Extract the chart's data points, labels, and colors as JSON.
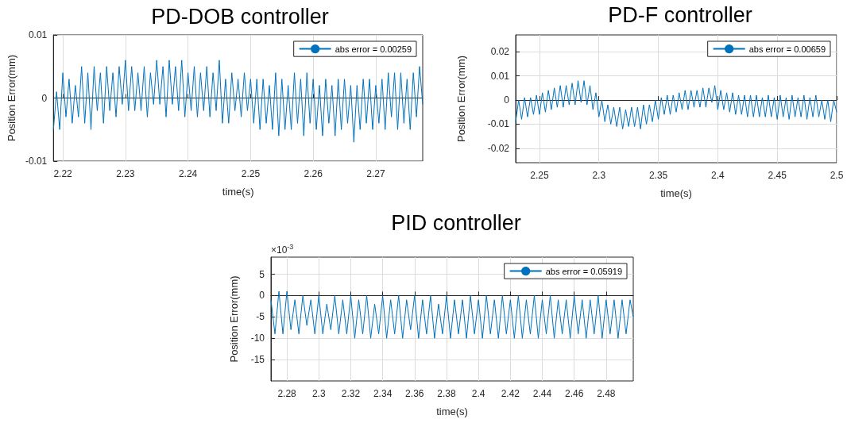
{
  "chart_data": [
    {
      "type": "line",
      "title": "PD-DOB controller",
      "xlabel": "time(s)",
      "ylabel": "Position Error(mm)",
      "grid": true,
      "legend": "top right",
      "marker": "none",
      "xlim": [
        2.2185,
        2.2775
      ],
      "ylim": [
        -0.01,
        0.01
      ],
      "xticks": [
        2.22,
        2.23,
        2.24,
        2.25,
        2.26,
        2.27
      ],
      "yticks": [
        -0.01,
        0,
        0.01
      ],
      "x": [
        2.2185,
        2.219,
        2.2195,
        2.22,
        2.2205,
        2.221,
        2.2215,
        2.222,
        2.2225,
        2.223,
        2.2235,
        2.224,
        2.2245,
        2.225,
        2.2255,
        2.226,
        2.2265,
        2.227,
        2.2275,
        2.228,
        2.2285,
        2.229,
        2.2295,
        2.23,
        2.2305,
        2.231,
        2.2315,
        2.232,
        2.2325,
        2.233,
        2.2335,
        2.234,
        2.2345,
        2.235,
        2.2355,
        2.236,
        2.2365,
        2.237,
        2.2375,
        2.238,
        2.2385,
        2.239,
        2.2395,
        2.24,
        2.2405,
        2.241,
        2.2415,
        2.242,
        2.2425,
        2.243,
        2.2435,
        2.244,
        2.2445,
        2.245,
        2.2455,
        2.246,
        2.2465,
        2.247,
        2.2475,
        2.248,
        2.2485,
        2.249,
        2.2495,
        2.25,
        2.2505,
        2.251,
        2.2515,
        2.252,
        2.2525,
        2.253,
        2.2535,
        2.254,
        2.2545,
        2.255,
        2.2555,
        2.256,
        2.2565,
        2.257,
        2.2575,
        2.258,
        2.2585,
        2.259,
        2.2595,
        2.26,
        2.2605,
        2.261,
        2.2615,
        2.262,
        2.2625,
        2.263,
        2.2635,
        2.264,
        2.2645,
        2.265,
        2.2655,
        2.266,
        2.2665,
        2.267,
        2.2675,
        2.268,
        2.2685,
        2.269,
        2.2695,
        2.27,
        2.2705,
        2.271,
        2.2715,
        2.272,
        2.2725,
        2.273,
        2.2735,
        2.274,
        2.2745,
        2.275,
        2.2755,
        2.276,
        2.2765,
        2.277,
        2.2775
      ],
      "series": [
        {
          "name": "abs error = 0.00259",
          "color": "#0072bd",
          "values": [
            -0.005,
            0.001,
            -0.005,
            0.004,
            -0.003,
            0.003,
            -0.004,
            0.002,
            -0.003,
            0.005,
            -0.004,
            0.004,
            -0.005,
            0.005,
            -0.002,
            0.004,
            -0.004,
            0.005,
            -0.002,
            0.004,
            -0.003,
            0.005,
            -0.001,
            0.006,
            -0.002,
            0.005,
            -0.002,
            0.004,
            -0.002,
            0.005,
            -0.003,
            0.004,
            -0.001,
            0.006,
            -0.001,
            0.005,
            -0.003,
            0.006,
            -0.001,
            0.005,
            -0.002,
            0.006,
            -0.003,
            0.004,
            -0.002,
            0.005,
            -0.003,
            0.004,
            -0.002,
            0.005,
            -0.003,
            0.004,
            -0.002,
            0.006,
            -0.004,
            0.003,
            -0.004,
            0.004,
            -0.002,
            0.003,
            -0.003,
            0.004,
            -0.002,
            0.003,
            -0.004,
            0.003,
            -0.005,
            0.003,
            -0.004,
            0.002,
            -0.005,
            0.004,
            -0.006,
            0.003,
            -0.005,
            0.002,
            -0.005,
            0.004,
            -0.004,
            0.003,
            -0.006,
            0.004,
            -0.004,
            0.003,
            -0.005,
            0.002,
            -0.006,
            0.003,
            -0.004,
            0.002,
            -0.006,
            0.003,
            -0.005,
            0.003,
            -0.004,
            0.002,
            -0.007,
            0.002,
            -0.005,
            0.003,
            -0.004,
            0.003,
            -0.005,
            0.002,
            -0.004,
            0.003,
            -0.005,
            0.004,
            -0.003,
            0.004,
            -0.005,
            0.004,
            -0.004,
            0.003,
            -0.005,
            0.004,
            -0.003,
            0.005,
            -0.001
          ]
        }
      ]
    },
    {
      "type": "line",
      "title": "PD-F controller",
      "xlabel": "time(s)",
      "ylabel": "Position Error(mm)",
      "grid": true,
      "legend": "top right",
      "marker": "none",
      "xlim": [
        2.23,
        2.5
      ],
      "ylim": [
        -0.026,
        0.027
      ],
      "xticks": [
        2.25,
        2.3,
        2.35,
        2.4,
        2.45,
        2.5
      ],
      "yticks": [
        -0.02,
        -0.01,
        0,
        0.01,
        0.02
      ],
      "x": [
        2.23,
        2.2325,
        2.235,
        2.2375,
        2.24,
        2.2425,
        2.245,
        2.2475,
        2.25,
        2.2525,
        2.255,
        2.2575,
        2.26,
        2.2625,
        2.265,
        2.2675,
        2.27,
        2.2725,
        2.275,
        2.2775,
        2.28,
        2.2825,
        2.285,
        2.2875,
        2.29,
        2.2925,
        2.295,
        2.2975,
        2.3,
        2.3025,
        2.305,
        2.3075,
        2.31,
        2.3125,
        2.315,
        2.3175,
        2.32,
        2.3225,
        2.325,
        2.3275,
        2.33,
        2.3325,
        2.335,
        2.3375,
        2.34,
        2.3425,
        2.345,
        2.3475,
        2.35,
        2.3525,
        2.355,
        2.3575,
        2.36,
        2.3625,
        2.365,
        2.3675,
        2.37,
        2.3725,
        2.375,
        2.3775,
        2.38,
        2.3825,
        2.385,
        2.3875,
        2.39,
        2.3925,
        2.395,
        2.3975,
        2.4,
        2.4025,
        2.405,
        2.4075,
        2.41,
        2.4125,
        2.415,
        2.4175,
        2.42,
        2.4225,
        2.425,
        2.4275,
        2.43,
        2.4325,
        2.435,
        2.4375,
        2.44,
        2.4425,
        2.445,
        2.4475,
        2.45,
        2.4525,
        2.455,
        2.4575,
        2.46,
        2.4625,
        2.465,
        2.4675,
        2.47,
        2.4725,
        2.475,
        2.4775,
        2.48,
        2.4825,
        2.485,
        2.4875,
        2.49,
        2.4925,
        2.495,
        2.4975,
        2.5
      ],
      "series": [
        {
          "name": "abs error = 0.00659",
          "color": "#0072bd",
          "values": [
            -0.009,
            0.0,
            -0.008,
            0.001,
            -0.007,
            0.001,
            -0.006,
            0.002,
            -0.006,
            0.003,
            -0.005,
            0.004,
            -0.004,
            0.005,
            -0.003,
            0.006,
            -0.003,
            0.006,
            -0.002,
            0.007,
            -0.002,
            0.008,
            -0.001,
            0.008,
            -0.002,
            0.006,
            -0.004,
            0.003,
            -0.007,
            0.0,
            -0.009,
            -0.002,
            -0.01,
            -0.003,
            -0.011,
            -0.003,
            -0.012,
            -0.004,
            -0.011,
            -0.003,
            -0.011,
            -0.003,
            -0.012,
            -0.002,
            -0.01,
            -0.002,
            -0.009,
            0.0,
            -0.008,
            0.001,
            -0.006,
            0.002,
            -0.006,
            0.002,
            -0.005,
            0.003,
            -0.004,
            0.004,
            -0.004,
            0.004,
            -0.003,
            0.004,
            -0.003,
            0.005,
            -0.003,
            0.005,
            -0.001,
            0.006,
            -0.004,
            0.004,
            -0.004,
            0.003,
            -0.005,
            0.003,
            -0.006,
            0.002,
            -0.006,
            0.002,
            -0.007,
            0.002,
            -0.007,
            0.002,
            -0.007,
            0.001,
            -0.007,
            0.002,
            -0.007,
            0.001,
            -0.008,
            0.002,
            -0.007,
            0.001,
            -0.008,
            0.002,
            -0.007,
            0.001,
            -0.007,
            0.002,
            -0.008,
            0.001,
            -0.007,
            0.002,
            -0.007,
            0.0,
            -0.008,
            0.0,
            -0.009,
            0.0,
            -0.005
          ]
        }
      ]
    },
    {
      "type": "line",
      "title": "PID controller",
      "xlabel": "time(s)",
      "ylabel": "Position Error(mm)",
      "grid": true,
      "legend": "top right",
      "marker": "none",
      "annotations": [
        "×10$^{-3}$"
      ],
      "xlim": [
        2.27,
        2.497
      ],
      "ylim": [
        -20,
        9
      ],
      "xticks": [
        2.28,
        2.3,
        2.32,
        2.34,
        2.36,
        2.38,
        2.4,
        2.42,
        2.44,
        2.46,
        2.48
      ],
      "yticks": [
        -15,
        -10,
        -5,
        0,
        5
      ],
      "x": [
        2.27,
        2.2725,
        2.275,
        2.2775,
        2.28,
        2.2825,
        2.285,
        2.2875,
        2.29,
        2.2925,
        2.295,
        2.2975,
        2.3,
        2.3025,
        2.305,
        2.3075,
        2.31,
        2.3125,
        2.315,
        2.3175,
        2.32,
        2.3225,
        2.325,
        2.3275,
        2.33,
        2.3325,
        2.335,
        2.3375,
        2.34,
        2.3425,
        2.345,
        2.3475,
        2.35,
        2.3525,
        2.355,
        2.3575,
        2.36,
        2.3625,
        2.365,
        2.3675,
        2.37,
        2.3725,
        2.375,
        2.3775,
        2.38,
        2.3825,
        2.385,
        2.3875,
        2.39,
        2.3925,
        2.395,
        2.3975,
        2.4,
        2.4025,
        2.405,
        2.4075,
        2.41,
        2.4125,
        2.415,
        2.4175,
        2.42,
        2.4225,
        2.425,
        2.4275,
        2.43,
        2.4325,
        2.435,
        2.4375,
        2.44,
        2.4425,
        2.445,
        2.4475,
        2.45,
        2.4525,
        2.455,
        2.4575,
        2.46,
        2.4625,
        2.465,
        2.4675,
        2.47,
        2.4725,
        2.475,
        2.4775,
        2.48,
        2.4825,
        2.485,
        2.4875,
        2.49,
        2.4925,
        2.495,
        2.497
      ],
      "series": [
        {
          "name": "abs error = 0.05919",
          "color": "#0072bd",
          "values": [
            -1,
            -9,
            1,
            -9,
            1,
            -8,
            -1,
            -9,
            0,
            -7,
            -1,
            -9,
            0,
            -9,
            -2,
            -8,
            0,
            -9,
            -1,
            -9,
            0,
            -10,
            -1,
            -9,
            0,
            -10,
            -2,
            -9,
            0,
            -10,
            -1,
            -9,
            0,
            -10,
            -1,
            -8,
            0,
            -10,
            -1,
            -9,
            0,
            -10,
            -2,
            -9,
            0,
            -10,
            -1,
            -9,
            -1,
            -10,
            0,
            -9,
            -1,
            -10,
            0,
            -9,
            -1,
            -10,
            0,
            -9,
            -1,
            -10,
            0,
            -10,
            -1,
            -9,
            0,
            -10,
            -1,
            -9,
            0,
            -10,
            -1,
            -9,
            -1,
            -10,
            0,
            -9,
            -1,
            -10,
            -1,
            -9,
            0,
            -10,
            -1,
            -9,
            -1,
            -10,
            -1,
            -9,
            -1,
            -5
          ]
        }
      ]
    }
  ]
}
